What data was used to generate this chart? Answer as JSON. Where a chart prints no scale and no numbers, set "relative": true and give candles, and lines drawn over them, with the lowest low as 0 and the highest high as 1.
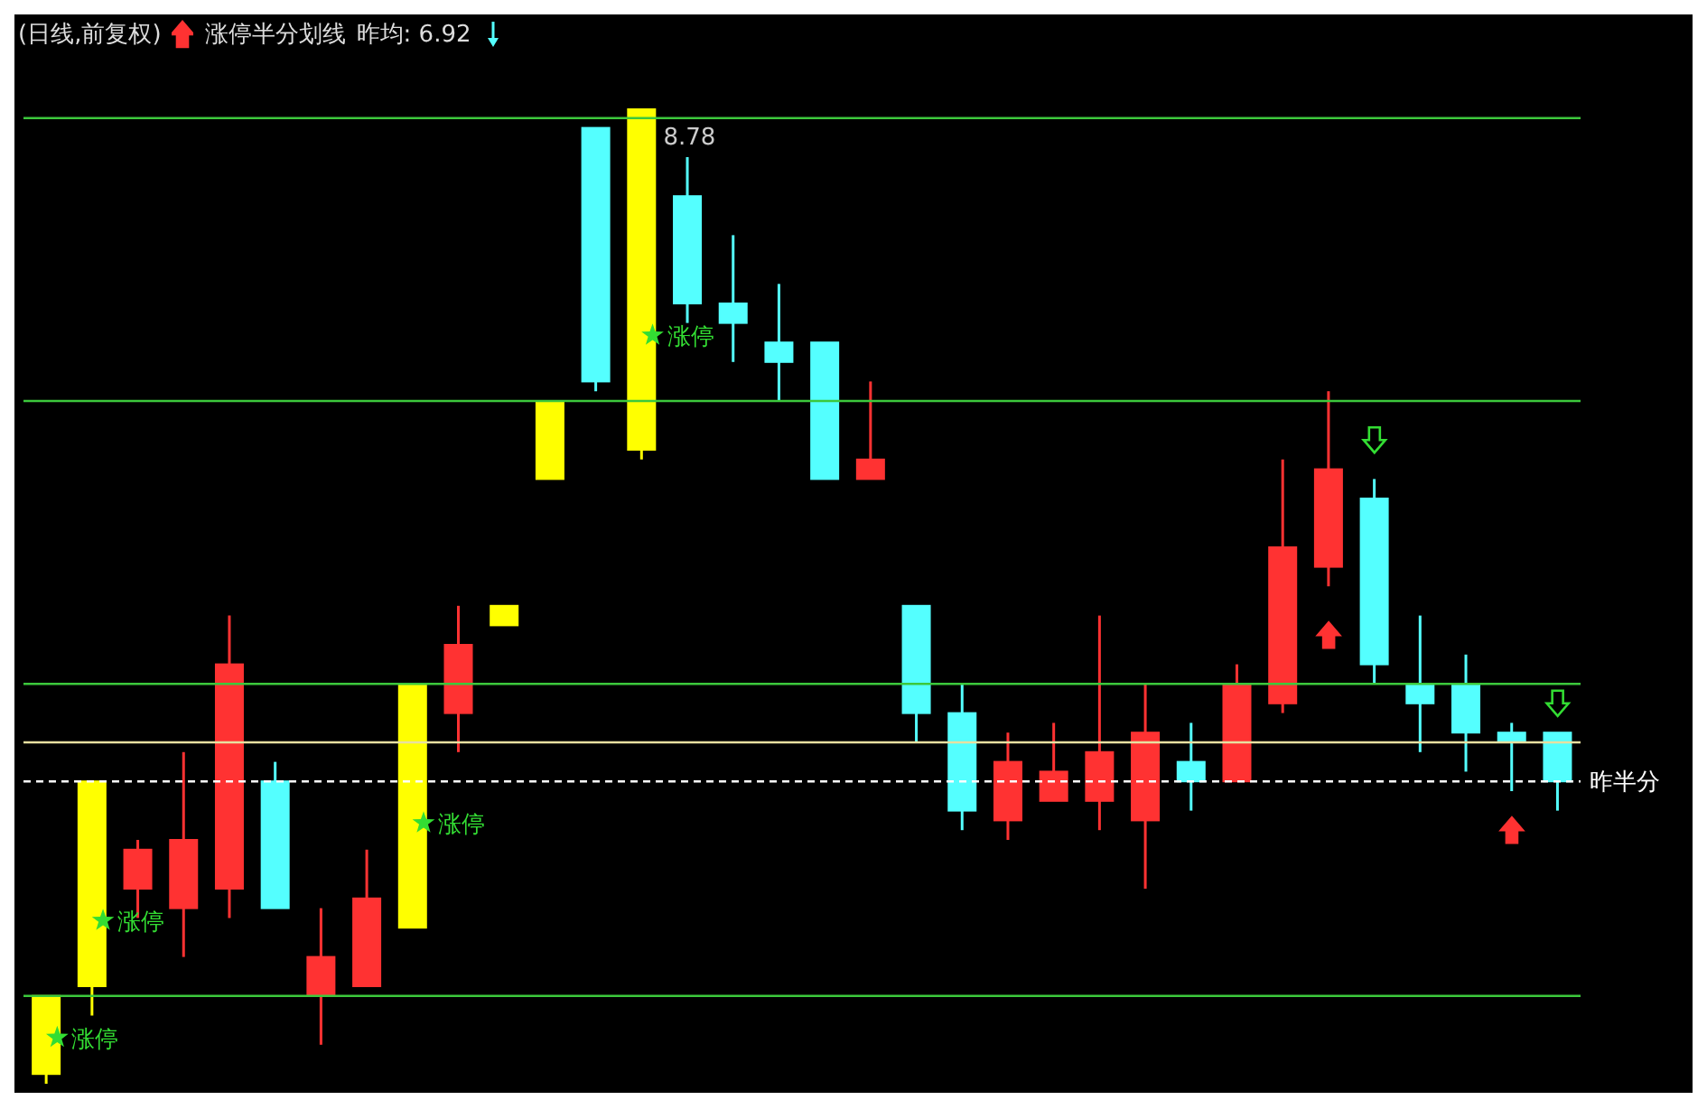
{
  "chart_data": {
    "type": "candlestick",
    "title": "(日线,前复权)",
    "relative": true,
    "tick_labels": false,
    "legend": false,
    "categories": [
      null,
      null,
      null,
      null,
      null,
      null,
      null,
      null,
      null,
      null,
      null,
      null,
      null,
      null,
      null,
      null,
      null,
      null,
      null,
      null,
      null,
      null,
      null,
      null,
      null,
      null,
      null,
      null,
      null,
      null,
      null,
      null,
      null,
      null
    ],
    "ohlc": [
      [
        0.01,
        0.09,
        0,
        0.09
      ],
      [
        0.1,
        0.31,
        0.07,
        0.31
      ],
      [
        0.2,
        0.25,
        0.17,
        0.24
      ],
      [
        0.18,
        0.34,
        0.13,
        0.25
      ],
      [
        0.2,
        0.48,
        0.17,
        0.43
      ],
      [
        0.31,
        0.33,
        0.18,
        0.18
      ],
      [
        0.09,
        0.18,
        0.04,
        0.13
      ],
      [
        0.1,
        0.24,
        0.1,
        0.19
      ],
      [
        0.16,
        0.41,
        0.16,
        0.41
      ],
      [
        0.38,
        0.49,
        0.34,
        0.45
      ],
      [
        0.47,
        0.49,
        0.47,
        0.49
      ],
      [
        0.62,
        0.7,
        0.62,
        0.7
      ],
      [
        0.98,
        0.98,
        0.71,
        0.72
      ],
      [
        0.65,
        1.0,
        0.64,
        1.0
      ],
      [
        0.91,
        0.95,
        0.78,
        0.8
      ],
      [
        0.8,
        0.87,
        0.74,
        0.78
      ],
      [
        0.76,
        0.82,
        0.7,
        0.74
      ],
      [
        0.76,
        0.76,
        0.62,
        0.62
      ],
      [
        0.62,
        0.72,
        0.62,
        0.64
      ],
      [
        0.49,
        0.49,
        0.35,
        0.38
      ],
      [
        0.38,
        0.41,
        0.26,
        0.28
      ],
      [
        0.27,
        0.36,
        0.25,
        0.33
      ],
      [
        0.29,
        0.37,
        0.29,
        0.32
      ],
      [
        0.29,
        0.48,
        0.26,
        0.34
      ],
      [
        0.27,
        0.41,
        0.2,
        0.36
      ],
      [
        0.33,
        0.37,
        0.28,
        0.31
      ],
      [
        0.31,
        0.43,
        0.31,
        0.41
      ],
      [
        0.39,
        0.64,
        0.38,
        0.55
      ],
      [
        0.53,
        0.71,
        0.51,
        0.63
      ],
      [
        0.6,
        0.62,
        0.41,
        0.43
      ],
      [
        0.41,
        0.48,
        0.34,
        0.39
      ],
      [
        0.41,
        0.44,
        0.32,
        0.36
      ],
      [
        0.36,
        0.37,
        0.3,
        0.35
      ],
      [
        0.36,
        0.36,
        0.28,
        0.31
      ]
    ],
    "colors": [
      "#ffff00",
      "#ffff00",
      "#ff3232",
      "#ff3232",
      "#ff3232",
      "#54ffff",
      "#ff3232",
      "#ff3232",
      "#ffff00",
      "#ff3232",
      "#ffff00",
      "#ffff00",
      "#54ffff",
      "#ffff00",
      "#54ffff",
      "#54ffff",
      "#54ffff",
      "#54ffff",
      "#ff3232",
      "#54ffff",
      "#54ffff",
      "#ff3232",
      "#ff3232",
      "#ff3232",
      "#ff3232",
      "#54ffff",
      "#ff3232",
      "#ff3232",
      "#ff3232",
      "#54ffff",
      "#54ffff",
      "#54ffff",
      "#54ffff",
      "#54ffff"
    ],
    "ref_lines": [
      {
        "axis": "y",
        "value": 0.99,
        "label": null,
        "color": "#3cc83c"
      },
      {
        "axis": "y",
        "value": 0.7,
        "label": null,
        "color": "#3cc83c"
      },
      {
        "axis": "y",
        "value": 0.41,
        "label": null,
        "color": "#3cc83c"
      },
      {
        "axis": "y",
        "value": 0.35,
        "label": null,
        "color": "#e8e0a0"
      },
      {
        "axis": "y",
        "value": 0.31,
        "label": "昨半分",
        "color": "#ffffff",
        "line_style": "dashed"
      },
      {
        "axis": "y",
        "value": 0.09,
        "label": null,
        "color": "#3cc83c"
      }
    ],
    "annotations": [
      "8.78",
      "涨停",
      "涨停",
      "涨停",
      "涨停",
      "涨停半分划线",
      "昨均: 6.92"
    ]
  }
}
